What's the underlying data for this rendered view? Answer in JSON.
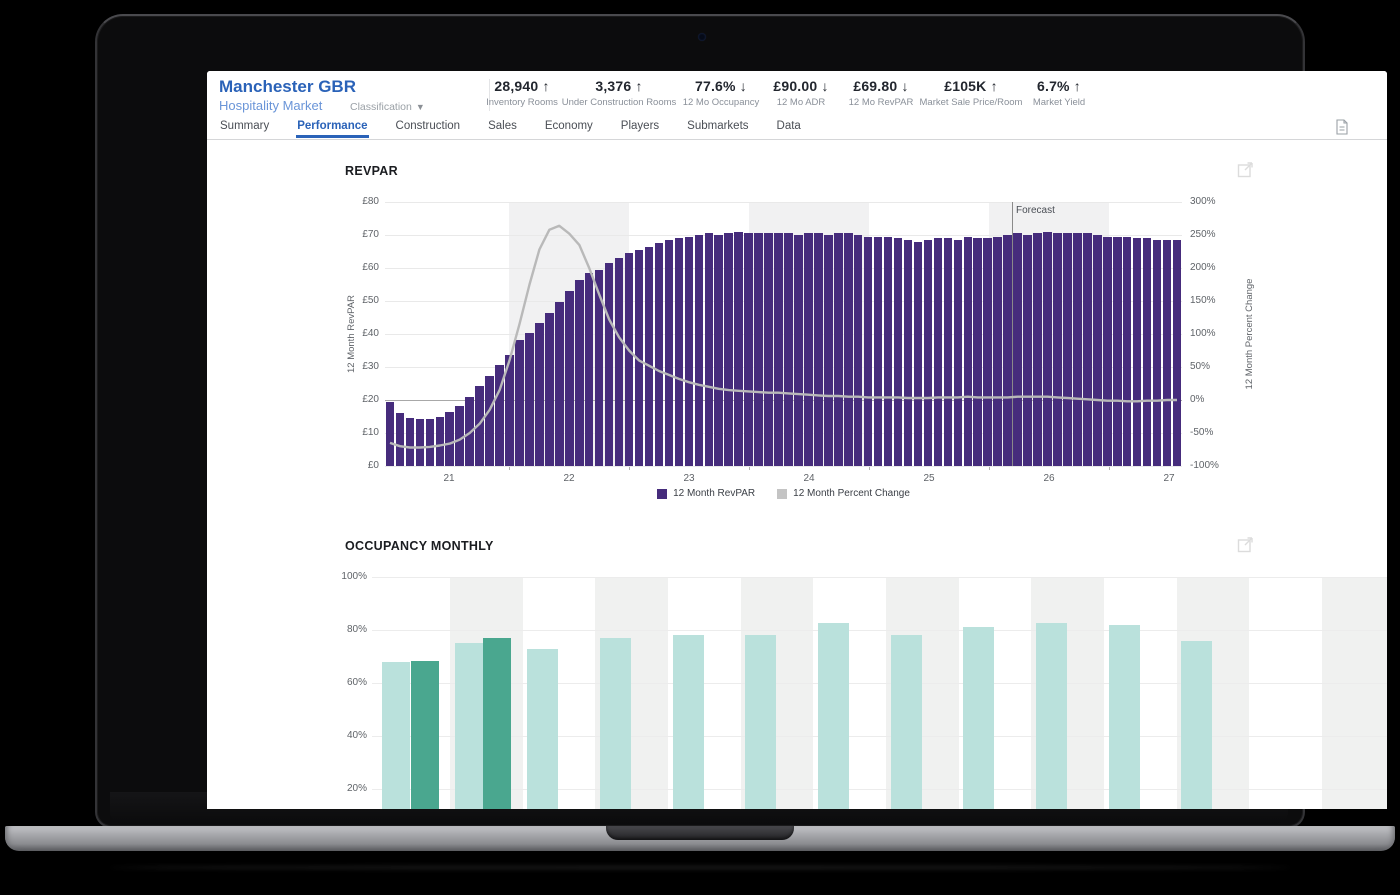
{
  "header": {
    "market_name": "Manchester GBR",
    "market_type": "Hospitality Market",
    "classification": "Classification",
    "stats": [
      {
        "value": "28,940",
        "arrow": "↑",
        "label": "Inventory Rooms"
      },
      {
        "value": "3,376",
        "arrow": "↑",
        "label": "Under Construction Rooms"
      },
      {
        "value": "77.6%",
        "arrow": "↓",
        "label": "12 Mo Occupancy"
      },
      {
        "value": "£90.00",
        "arrow": "↓",
        "label": "12 Mo ADR"
      },
      {
        "value": "£69.80",
        "arrow": "↓",
        "label": "12 Mo RevPAR"
      },
      {
        "value": "£105K",
        "arrow": "↑",
        "label": "Market Sale Price/Room"
      },
      {
        "value": "6.7%",
        "arrow": "↑",
        "label": "Market Yield"
      }
    ]
  },
  "tabs": {
    "items": [
      "Summary",
      "Performance",
      "Construction",
      "Sales",
      "Economy",
      "Players",
      "Submarkets",
      "Data"
    ],
    "active_index": 1
  },
  "revpar_section": {
    "title": "REVPAR",
    "chart_data": {
      "type": "bar+line",
      "x_start": "2020-07",
      "x_step": "month",
      "x_year_labels": [
        "21",
        "22",
        "23",
        "24",
        "25",
        "26",
        "27"
      ],
      "left_axis": {
        "title": "12 Month RevPAR",
        "min": 0,
        "max": 80,
        "ticks": [
          "£80",
          "£70",
          "£60",
          "£50",
          "£40",
          "£30",
          "£20",
          "£10",
          "£0"
        ]
      },
      "right_axis": {
        "title": "12 Month Percent Change",
        "min": -100,
        "max": 300,
        "ticks": [
          "300%",
          "250%",
          "200%",
          "150%",
          "100%",
          "50%",
          "0%",
          "-50%",
          "-100%"
        ]
      },
      "forecast_label": "Forecast",
      "legend": [
        "12 Month RevPAR",
        "12 Month Percent Change"
      ],
      "series": [
        {
          "name": "12 Month RevPAR",
          "type": "bar",
          "color": "#462c7c",
          "values": [
            19.5,
            16.2,
            14.6,
            14.4,
            14.4,
            15.0,
            16.5,
            18.2,
            21.0,
            24.3,
            27.2,
            30.5,
            33.6,
            38.3,
            40.2,
            43.2,
            46.4,
            49.8,
            53.0,
            56.5,
            58.5,
            59.5,
            61.5,
            63.0,
            64.5,
            65.5,
            66.5,
            67.5,
            68.5,
            69.0,
            69.5,
            70.0,
            70.5,
            70.0,
            70.5,
            71.0,
            70.5,
            70.5,
            70.5,
            70.5,
            70.5,
            70.0,
            70.5,
            70.5,
            70.0,
            70.5,
            70.5,
            70.0,
            69.5,
            69.5,
            69.5,
            69.0,
            68.5,
            68.0,
            68.5,
            69.0,
            69.0,
            68.5,
            69.5,
            69.0,
            69.0,
            69.5,
            70.0,
            70.5,
            70.0,
            70.5,
            71.0,
            70.5,
            70.5,
            70.5,
            70.5,
            70.0,
            69.5,
            69.5,
            69.5,
            69.0,
            69.0,
            68.5,
            68.5,
            68.5
          ]
        },
        {
          "name": "12 Month Percent Change",
          "type": "line",
          "color": "#b9b9b9",
          "values": [
            -65,
            -70,
            -72,
            -72,
            -71,
            -69,
            -66,
            -60,
            -50,
            -36,
            -15,
            15,
            60,
            115,
            175,
            228,
            258,
            264,
            252,
            235,
            200,
            160,
            122,
            95,
            75,
            60,
            52,
            44,
            38,
            32,
            27,
            23,
            20,
            17,
            15,
            14,
            13,
            12,
            11,
            11,
            10,
            9,
            8,
            7,
            6,
            6,
            5,
            5,
            4,
            4,
            4,
            4,
            3,
            3,
            3,
            4,
            4,
            4,
            5,
            4,
            4,
            4,
            4,
            5,
            5,
            5,
            5,
            4,
            3,
            2,
            1,
            0,
            -1,
            -1,
            -2,
            -2,
            -1,
            -1,
            0,
            0
          ]
        }
      ]
    }
  },
  "occupancy_section": {
    "title": "OCCUPANCY MONTHLY",
    "chart_data": {
      "type": "bar",
      "y_axis": {
        "min": 0,
        "max": 100,
        "ticks": [
          "100%",
          "80%",
          "60%",
          "40%",
          "20%"
        ]
      },
      "colors": {
        "light": "#bae1dc",
        "dark": "#4aa78f"
      },
      "bars": [
        {
          "slot": 0,
          "value": 68,
          "shade": "light"
        },
        {
          "slot": 0,
          "value": 68.5,
          "shade": "dark"
        },
        {
          "slot": 1,
          "value": 75,
          "shade": "light"
        },
        {
          "slot": 1,
          "value": 77,
          "shade": "dark"
        },
        {
          "slot": 2,
          "value": 73,
          "shade": "light"
        },
        {
          "slot": 3,
          "value": 77,
          "shade": "light"
        },
        {
          "slot": 4,
          "value": 78,
          "shade": "light"
        },
        {
          "slot": 5,
          "value": 78,
          "shade": "light"
        },
        {
          "slot": 6,
          "value": 82.5,
          "shade": "light"
        },
        {
          "slot": 7,
          "value": 78,
          "shade": "light"
        },
        {
          "slot": 8,
          "value": 81,
          "shade": "light"
        },
        {
          "slot": 9,
          "value": 82.5,
          "shade": "light"
        },
        {
          "slot": 10,
          "value": 82,
          "shade": "light"
        },
        {
          "slot": 11,
          "value": 76,
          "shade": "light"
        }
      ]
    }
  },
  "colors": {
    "accent_blue": "#2a62b8",
    "bar_purple": "#462c7c",
    "line_gray": "#b9b9b9",
    "teal_light": "#bae1dc",
    "teal_dark": "#4aa78f",
    "band_gray": "#f1f1f2"
  }
}
